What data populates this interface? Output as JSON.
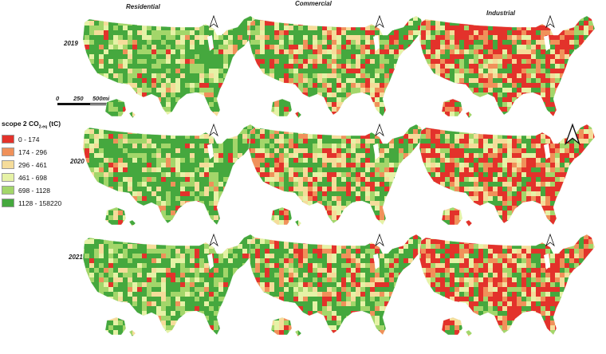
{
  "columns": [
    "Residential",
    "Commercial",
    "Industrial"
  ],
  "rows": [
    "2019",
    "2020",
    "2021"
  ],
  "legend": {
    "title_main": "scope 2 CO",
    "title_sub": "2-eq",
    "title_unit": " (tC)",
    "items": [
      {
        "label": "0 - 174",
        "color": "#e3322b"
      },
      {
        "label": "174 - 296",
        "color": "#f0915a"
      },
      {
        "label": "296 - 461",
        "color": "#f5dc9a"
      },
      {
        "label": "461 - 698",
        "color": "#e6f2a6"
      },
      {
        "label": "698 - 1128",
        "color": "#a3d66a"
      },
      {
        "label": "1128 - 158220",
        "color": "#45a83e"
      }
    ]
  },
  "scale": {
    "t0": "0",
    "t1": "250",
    "t2": "500mi"
  },
  "maps": [
    {
      "row": "2019",
      "column": "Residential",
      "palette": [
        0.04,
        0.04,
        0.1,
        0.12,
        0.22,
        0.48
      ]
    },
    {
      "row": "2019",
      "column": "Commercial",
      "palette": [
        0.16,
        0.1,
        0.14,
        0.1,
        0.14,
        0.36
      ]
    },
    {
      "row": "2019",
      "column": "Industrial",
      "palette": [
        0.4,
        0.14,
        0.12,
        0.08,
        0.1,
        0.16
      ]
    },
    {
      "row": "2020",
      "column": "Residential",
      "palette": [
        0.04,
        0.04,
        0.1,
        0.12,
        0.22,
        0.48
      ]
    },
    {
      "row": "2020",
      "column": "Commercial",
      "palette": [
        0.16,
        0.1,
        0.14,
        0.1,
        0.14,
        0.36
      ]
    },
    {
      "row": "2020",
      "column": "Industrial",
      "palette": [
        0.4,
        0.14,
        0.12,
        0.08,
        0.1,
        0.16
      ]
    },
    {
      "row": "2021",
      "column": "Residential",
      "palette": [
        0.04,
        0.04,
        0.1,
        0.12,
        0.22,
        0.48
      ]
    },
    {
      "row": "2021",
      "column": "Commercial",
      "palette": [
        0.16,
        0.1,
        0.14,
        0.1,
        0.14,
        0.36
      ]
    },
    {
      "row": "2021",
      "column": "Industrial",
      "palette": [
        0.4,
        0.14,
        0.12,
        0.08,
        0.1,
        0.16
      ]
    }
  ]
}
